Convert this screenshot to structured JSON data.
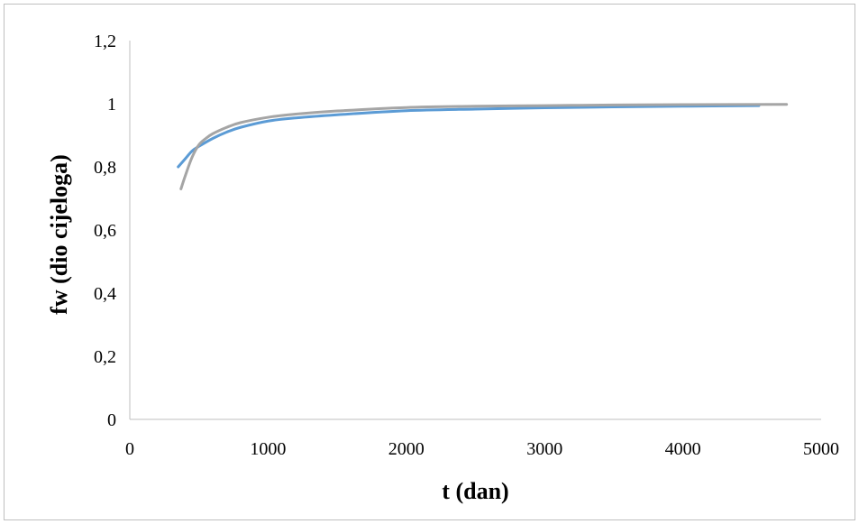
{
  "chart_data": {
    "type": "line",
    "title": "",
    "xlabel": "t (dan)",
    "ylabel": "fw (dio cijeloga)",
    "xlim": [
      0,
      5000
    ],
    "ylim": [
      0,
      1.2
    ],
    "x_ticks": [
      "0",
      "1000",
      "2000",
      "3000",
      "4000",
      "5000"
    ],
    "y_ticks": [
      "0",
      "0,2",
      "0,4",
      "0,6",
      "0,8",
      "1",
      "1,2"
    ],
    "grid": false,
    "legend": "none",
    "series": [
      {
        "color": "#5b9bd5",
        "x": [
          350,
          400,
          450,
          500,
          600,
          700,
          800,
          1000,
          1200,
          1500,
          2000,
          2500,
          3000,
          3500,
          4000,
          4550
        ],
        "y": [
          0.8,
          0.825,
          0.85,
          0.865,
          0.89,
          0.91,
          0.925,
          0.945,
          0.955,
          0.965,
          0.978,
          0.983,
          0.987,
          0.99,
          0.992,
          0.994
        ]
      },
      {
        "color": "#a5a5a5",
        "x": [
          370,
          400,
          450,
          500,
          550,
          600,
          700,
          800,
          1000,
          1200,
          1500,
          2000,
          2500,
          3000,
          3500,
          4000,
          4750
        ],
        "y": [
          0.73,
          0.77,
          0.83,
          0.87,
          0.89,
          0.905,
          0.925,
          0.94,
          0.957,
          0.967,
          0.977,
          0.988,
          0.992,
          0.994,
          0.996,
          0.997,
          0.998
        ]
      }
    ]
  }
}
